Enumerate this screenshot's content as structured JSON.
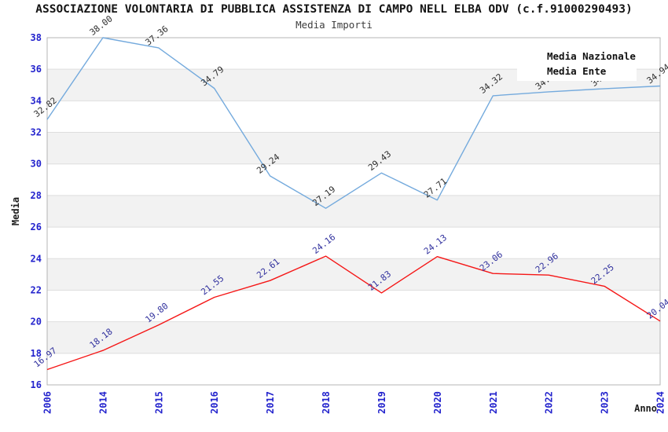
{
  "header": {
    "title": "ASSOCIAZIONE VOLONTARIA DI PUBBLICA ASSISTENZA DI CAMPO NELL ELBA ODV (c.f.91000290493)",
    "subtitle": "Media Importi"
  },
  "axes": {
    "y_label": "Media",
    "x_label": "Anno",
    "y_ticks": [
      38,
      36,
      34,
      32,
      30,
      28,
      26,
      24,
      22,
      20,
      18,
      16
    ],
    "tick_color": "#2323cd"
  },
  "legend": {
    "items": [
      {
        "label": "Media Nazionale",
        "color": "#79aede"
      },
      {
        "label": "Media Ente",
        "color": "#f51616"
      }
    ]
  },
  "chart_data": {
    "type": "line",
    "title": "ASSOCIAZIONE VOLONTARIA DI PUBBLICA ASSISTENZA DI CAMPO NELL ELBA ODV (c.f.91000290493)",
    "subtitle": "Media Importi",
    "xlabel": "Anno",
    "ylabel": "Media",
    "ylim": [
      16,
      38
    ],
    "x": [
      "2006",
      "2014",
      "2015",
      "2016",
      "2017",
      "2018",
      "2019",
      "2020",
      "2021",
      "2022",
      "2023",
      "2024"
    ],
    "series": [
      {
        "name": "Media Nazionale",
        "color": "#74aadd",
        "label_color": "#2e2e2e",
        "values": [
          32.82,
          38.0,
          37.36,
          34.79,
          29.24,
          27.19,
          29.43,
          27.71,
          34.32,
          34.57,
          34.77,
          34.94
        ]
      },
      {
        "name": "Media Ente",
        "color": "#f51616",
        "label_color": "#31319e",
        "values": [
          16.97,
          18.18,
          19.8,
          21.55,
          22.61,
          24.16,
          21.83,
          24.13,
          23.06,
          22.96,
          22.25,
          20.04
        ]
      }
    ],
    "legend_position": "top-right",
    "band_fill": "#f2f2f2",
    "grid_color": "#dedede",
    "border_color": "#b4b4b4",
    "grid": "alternating 2-unit horizontal bands"
  }
}
